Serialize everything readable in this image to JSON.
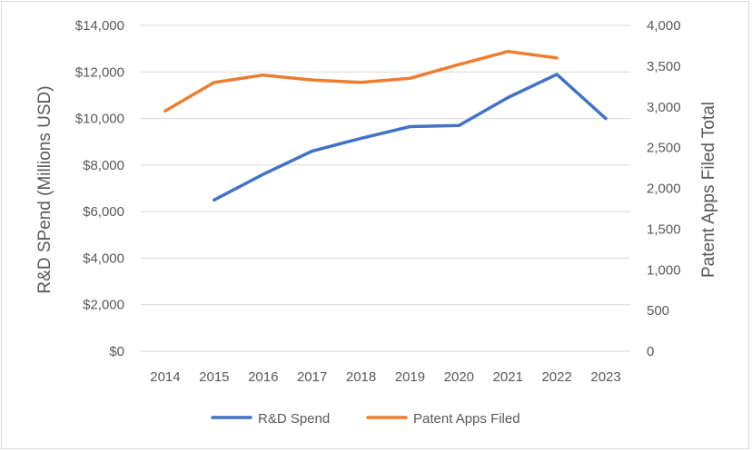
{
  "chart_data": {
    "type": "line",
    "title": "",
    "categories": [
      "2014",
      "2015",
      "2016",
      "2017",
      "2018",
      "2019",
      "2020",
      "2021",
      "2022",
      "2023"
    ],
    "xlabel": "",
    "ylabel_left": "R&D SPend (Millions USD)",
    "ylabel_right": "Patent Apps Filed Total",
    "ylim_left": [
      0,
      14000
    ],
    "ylim_right": [
      0,
      4000
    ],
    "yticks_left": [
      "$0",
      "$2,000",
      "$4,000",
      "$6,000",
      "$8,000",
      "$10,000",
      "$12,000",
      "$14,000"
    ],
    "yticks_right": [
      "0",
      "500",
      "1,000",
      "1,500",
      "2,000",
      "2,500",
      "3,000",
      "3,500",
      "4,000"
    ],
    "grid": true,
    "legend_position": "bottom",
    "series": [
      {
        "name": "R&D Spend",
        "axis": "left",
        "color": "#4472c4",
        "values": [
          null,
          6500,
          7600,
          8600,
          9150,
          9650,
          9700,
          10900,
          11900,
          10000
        ]
      },
      {
        "name": "Patent Apps Filed",
        "axis": "right",
        "color": "#ed7d31",
        "values": [
          2950,
          3300,
          3390,
          3330,
          3300,
          3350,
          3520,
          3680,
          3600,
          null
        ]
      }
    ]
  }
}
